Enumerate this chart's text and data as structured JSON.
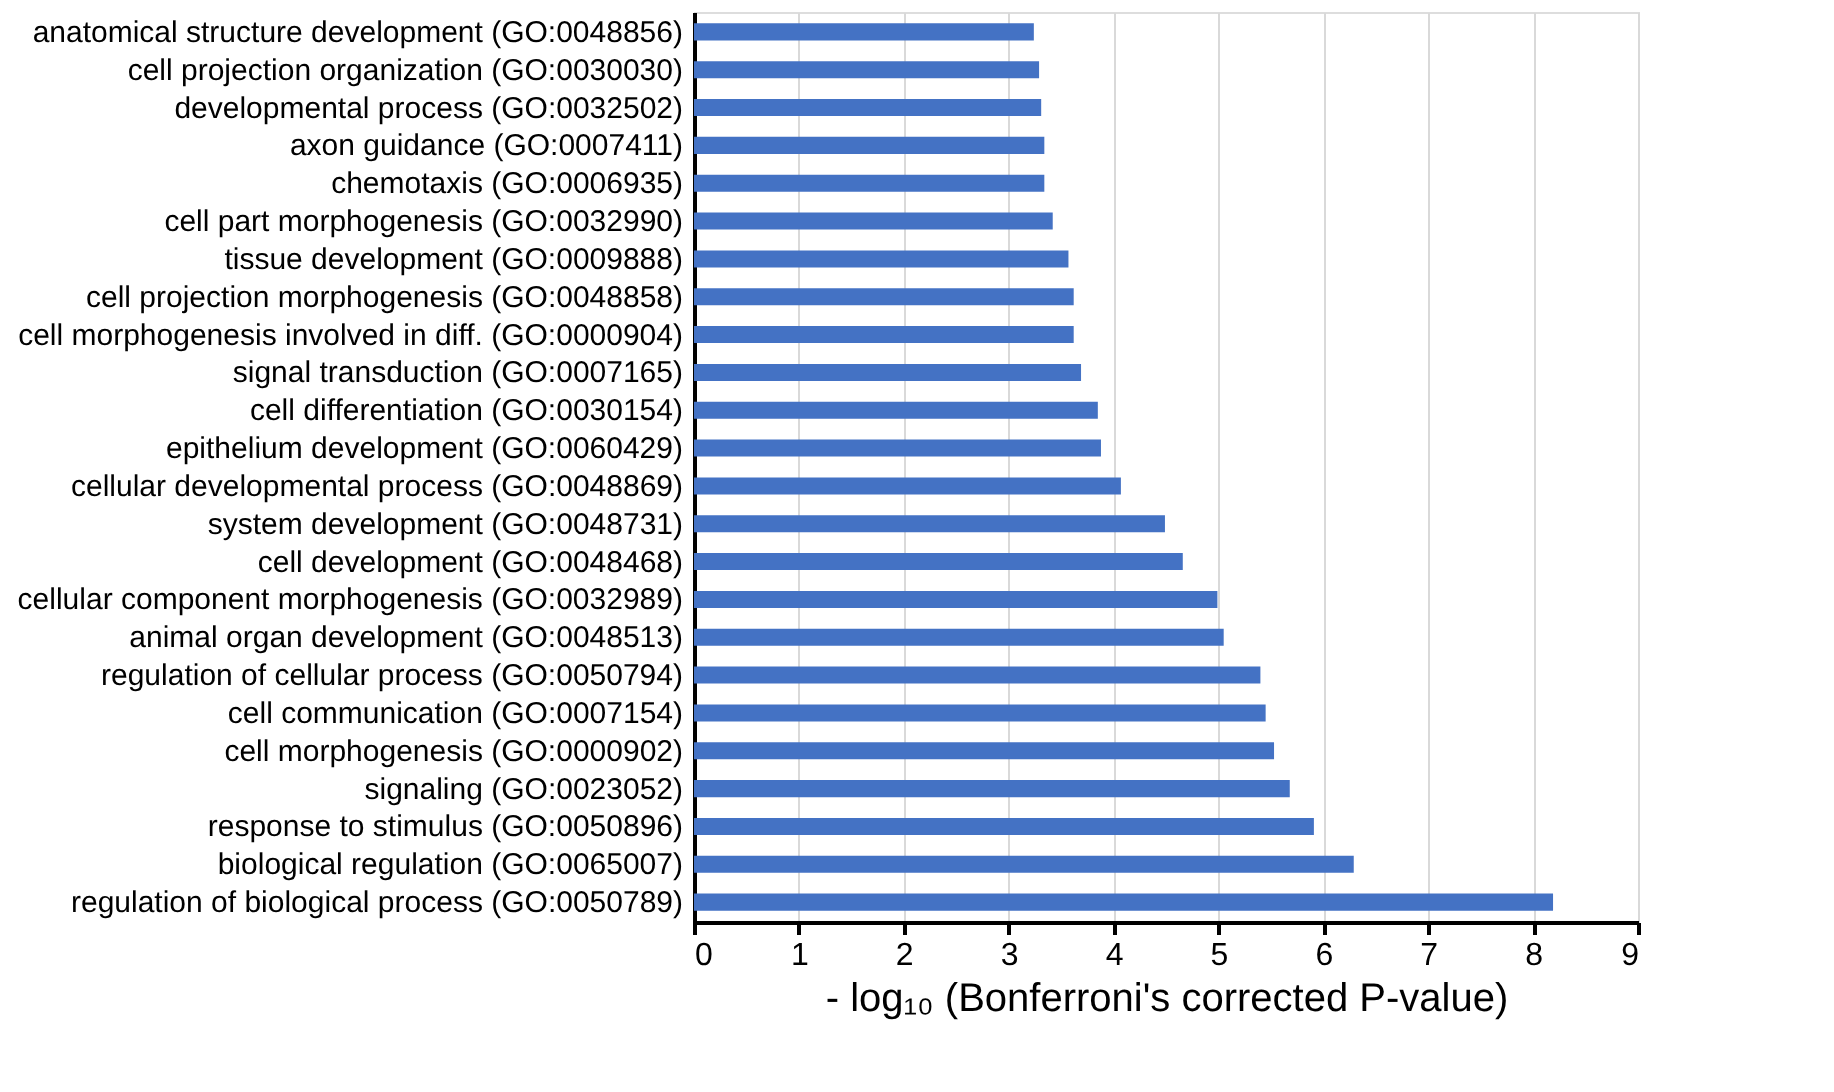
{
  "chart_data": {
    "type": "bar",
    "orientation": "horizontal",
    "xlabel": "- log₁₀ (Bonferroni's corrected P-value)",
    "categories": [
      "anatomical structure development (GO:0048856)",
      "cell projection organization (GO:0030030)",
      "developmental process (GO:0032502)",
      "axon guidance (GO:0007411)",
      "chemotaxis (GO:0006935)",
      "cell part morphogenesis (GO:0032990)",
      "tissue development (GO:0009888)",
      "cell projection morphogenesis (GO:0048858)",
      "cell morphogenesis involved in diff. (GO:0000904)",
      "signal transduction (GO:0007165)",
      "cell differentiation (GO:0030154)",
      "epithelium development (GO:0060429)",
      "cellular developmental process (GO:0048869)",
      "system development (GO:0048731)",
      "cell development (GO:0048468)",
      "cellular component morphogenesis (GO:0032989)",
      "animal organ development (GO:0048513)",
      "regulation of cellular process (GO:0050794)",
      "cell communication (GO:0007154)",
      "cell morphogenesis (GO:0000902)",
      "signaling (GO:0023052)",
      "response to stimulus (GO:0050896)",
      "biological regulation (GO:0065007)",
      "regulation of biological process (GO:0050789)"
    ],
    "values": [
      3.24,
      3.29,
      3.31,
      3.34,
      3.34,
      3.42,
      3.57,
      3.62,
      3.62,
      3.69,
      3.85,
      3.88,
      4.07,
      4.49,
      4.66,
      4.99,
      5.05,
      5.4,
      5.45,
      5.53,
      5.68,
      5.91,
      6.29,
      8.19
    ],
    "color": "#4472c4",
    "xlim": [
      0,
      9
    ],
    "xticks": [
      0,
      1,
      2,
      3,
      4,
      5,
      6,
      7,
      8,
      9
    ],
    "grid": "x"
  }
}
